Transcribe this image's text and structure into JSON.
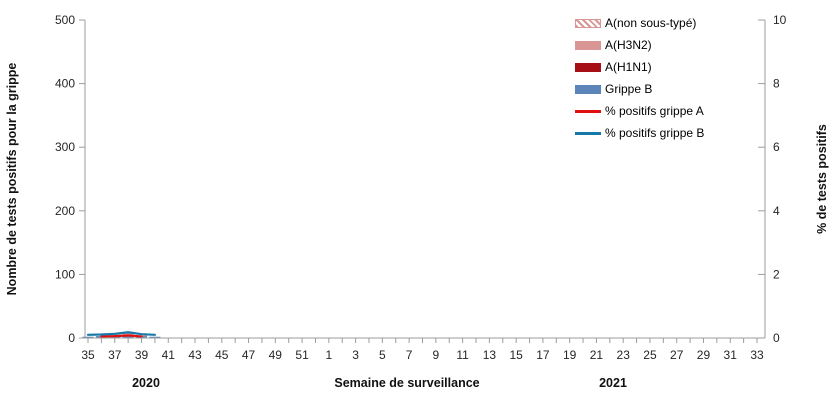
{
  "chart_data": {
    "type": "combo-bar-line",
    "title": "",
    "x_axis": {
      "label": "Semaine de surveillance",
      "year_left": "2020",
      "year_right": "2021",
      "categories": [
        "35",
        "36",
        "37",
        "38",
        "39",
        "40",
        "41",
        "42",
        "43",
        "44",
        "45",
        "46",
        "47",
        "48",
        "49",
        "50",
        "51",
        "52",
        "1",
        "2",
        "3",
        "4",
        "5",
        "6",
        "7",
        "8",
        "9",
        "10",
        "11",
        "12",
        "13",
        "14",
        "15",
        "16",
        "17",
        "18",
        "19",
        "20",
        "21",
        "22",
        "23",
        "24",
        "25",
        "26",
        "27",
        "28",
        "29",
        "30",
        "31",
        "32",
        "33"
      ],
      "shown_tick_labels": [
        "35",
        "37",
        "39",
        "41",
        "43",
        "45",
        "47",
        "49",
        "51",
        "1",
        "3",
        "5",
        "7",
        "9",
        "11",
        "13",
        "15",
        "17",
        "19",
        "21",
        "23",
        "25",
        "27",
        "29",
        "31",
        "33"
      ]
    },
    "y_left": {
      "label": "Nombre de tests positifs pour la grippe",
      "min": 0,
      "max": 500,
      "ticks": [
        0,
        100,
        200,
        300,
        400,
        500
      ]
    },
    "y_right": {
      "label": "% de tests positifs",
      "min": 0,
      "max": 10,
      "ticks": [
        0,
        2,
        4,
        6,
        8,
        10
      ]
    },
    "bar_series": [
      {
        "name": "Grippe B",
        "color": "#5b84b8",
        "style": "solid",
        "values": [
          2,
          3,
          3,
          5,
          3,
          2,
          0,
          0,
          0,
          0,
          0,
          0,
          0,
          0,
          0,
          0,
          0,
          0,
          0,
          0,
          0,
          0,
          0,
          0,
          0,
          0,
          0,
          0,
          0,
          0,
          0,
          0,
          0,
          0,
          0,
          0,
          0,
          0,
          0,
          0,
          0,
          0,
          0,
          0,
          0,
          0,
          0,
          0,
          0,
          0,
          0
        ]
      },
      {
        "name": "A(H1N1)",
        "color": "#a50f15",
        "style": "solid",
        "values": [
          0,
          0,
          0,
          0,
          0,
          0,
          0,
          0,
          0,
          0,
          0,
          0,
          0,
          0,
          0,
          0,
          0,
          0,
          0,
          0,
          0,
          0,
          0,
          0,
          0,
          0,
          0,
          0,
          0,
          0,
          0,
          0,
          0,
          0,
          0,
          0,
          0,
          0,
          0,
          0,
          0,
          0,
          0,
          0,
          0,
          0,
          0,
          0,
          0,
          0,
          0
        ]
      },
      {
        "name": "A(H3N2)",
        "color": "#d99694",
        "style": "solid",
        "values": [
          0,
          0,
          1,
          3,
          1,
          0,
          0,
          0,
          0,
          0,
          0,
          0,
          0,
          0,
          0,
          0,
          0,
          0,
          0,
          0,
          0,
          0,
          0,
          0,
          0,
          0,
          0,
          0,
          0,
          0,
          0,
          0,
          0,
          0,
          0,
          0,
          0,
          0,
          0,
          0,
          0,
          0,
          0,
          0,
          0,
          0,
          0,
          0,
          0,
          0,
          0
        ]
      },
      {
        "name": "A(non sous-typé)",
        "color": "#d99694",
        "style": "hatched",
        "values": [
          0,
          0,
          0,
          0,
          0,
          0,
          0,
          0,
          0,
          0,
          0,
          0,
          0,
          0,
          0,
          0,
          0,
          0,
          0,
          0,
          0,
          0,
          0,
          0,
          0,
          0,
          0,
          0,
          0,
          0,
          0,
          0,
          0,
          0,
          0,
          0,
          0,
          0,
          0,
          0,
          0,
          0,
          0,
          0,
          0,
          0,
          0,
          0,
          0,
          0,
          0
        ]
      }
    ],
    "line_series": [
      {
        "name": "% positifs grippe A",
        "color": "#e01010",
        "values": [
          null,
          0.05,
          0.06,
          0.08,
          0.05,
          null,
          null,
          null,
          null,
          null,
          null,
          null,
          null,
          null,
          null,
          null,
          null,
          null,
          null,
          null,
          null,
          null,
          null,
          null,
          null,
          null,
          null,
          null,
          null,
          null,
          null,
          null,
          null,
          null,
          null,
          null,
          null,
          null,
          null,
          null,
          null,
          null,
          null,
          null,
          null,
          null,
          null,
          null,
          null,
          null,
          null
        ]
      },
      {
        "name": "% positifs grippe B",
        "color": "#1878a8",
        "values": [
          0.1,
          0.11,
          0.13,
          0.18,
          0.12,
          0.1,
          null,
          null,
          null,
          null,
          null,
          null,
          null,
          null,
          null,
          null,
          null,
          null,
          null,
          null,
          null,
          null,
          null,
          null,
          null,
          null,
          null,
          null,
          null,
          null,
          null,
          null,
          null,
          null,
          null,
          null,
          null,
          null,
          null,
          null,
          null,
          null,
          null,
          null,
          null,
          null,
          null,
          null,
          null,
          null,
          null
        ]
      }
    ],
    "legend": [
      {
        "label": "A(non sous-typé)",
        "swatch": "hatched",
        "color": "#d99694"
      },
      {
        "label": "A(H3N2)",
        "swatch": "bar",
        "color": "#d99694"
      },
      {
        "label": "A(H1N1)",
        "swatch": "bar",
        "color": "#a50f15"
      },
      {
        "label": "Grippe B",
        "swatch": "bar",
        "color": "#5b84b8"
      },
      {
        "label": "% positifs grippe A",
        "swatch": "line",
        "color": "#e01010"
      },
      {
        "label": "% positifs grippe B",
        "swatch": "line",
        "color": "#1878a8"
      }
    ],
    "layout": {
      "axis_color": "#9c9c9c",
      "grid": false,
      "legend_position": "top-right"
    }
  }
}
